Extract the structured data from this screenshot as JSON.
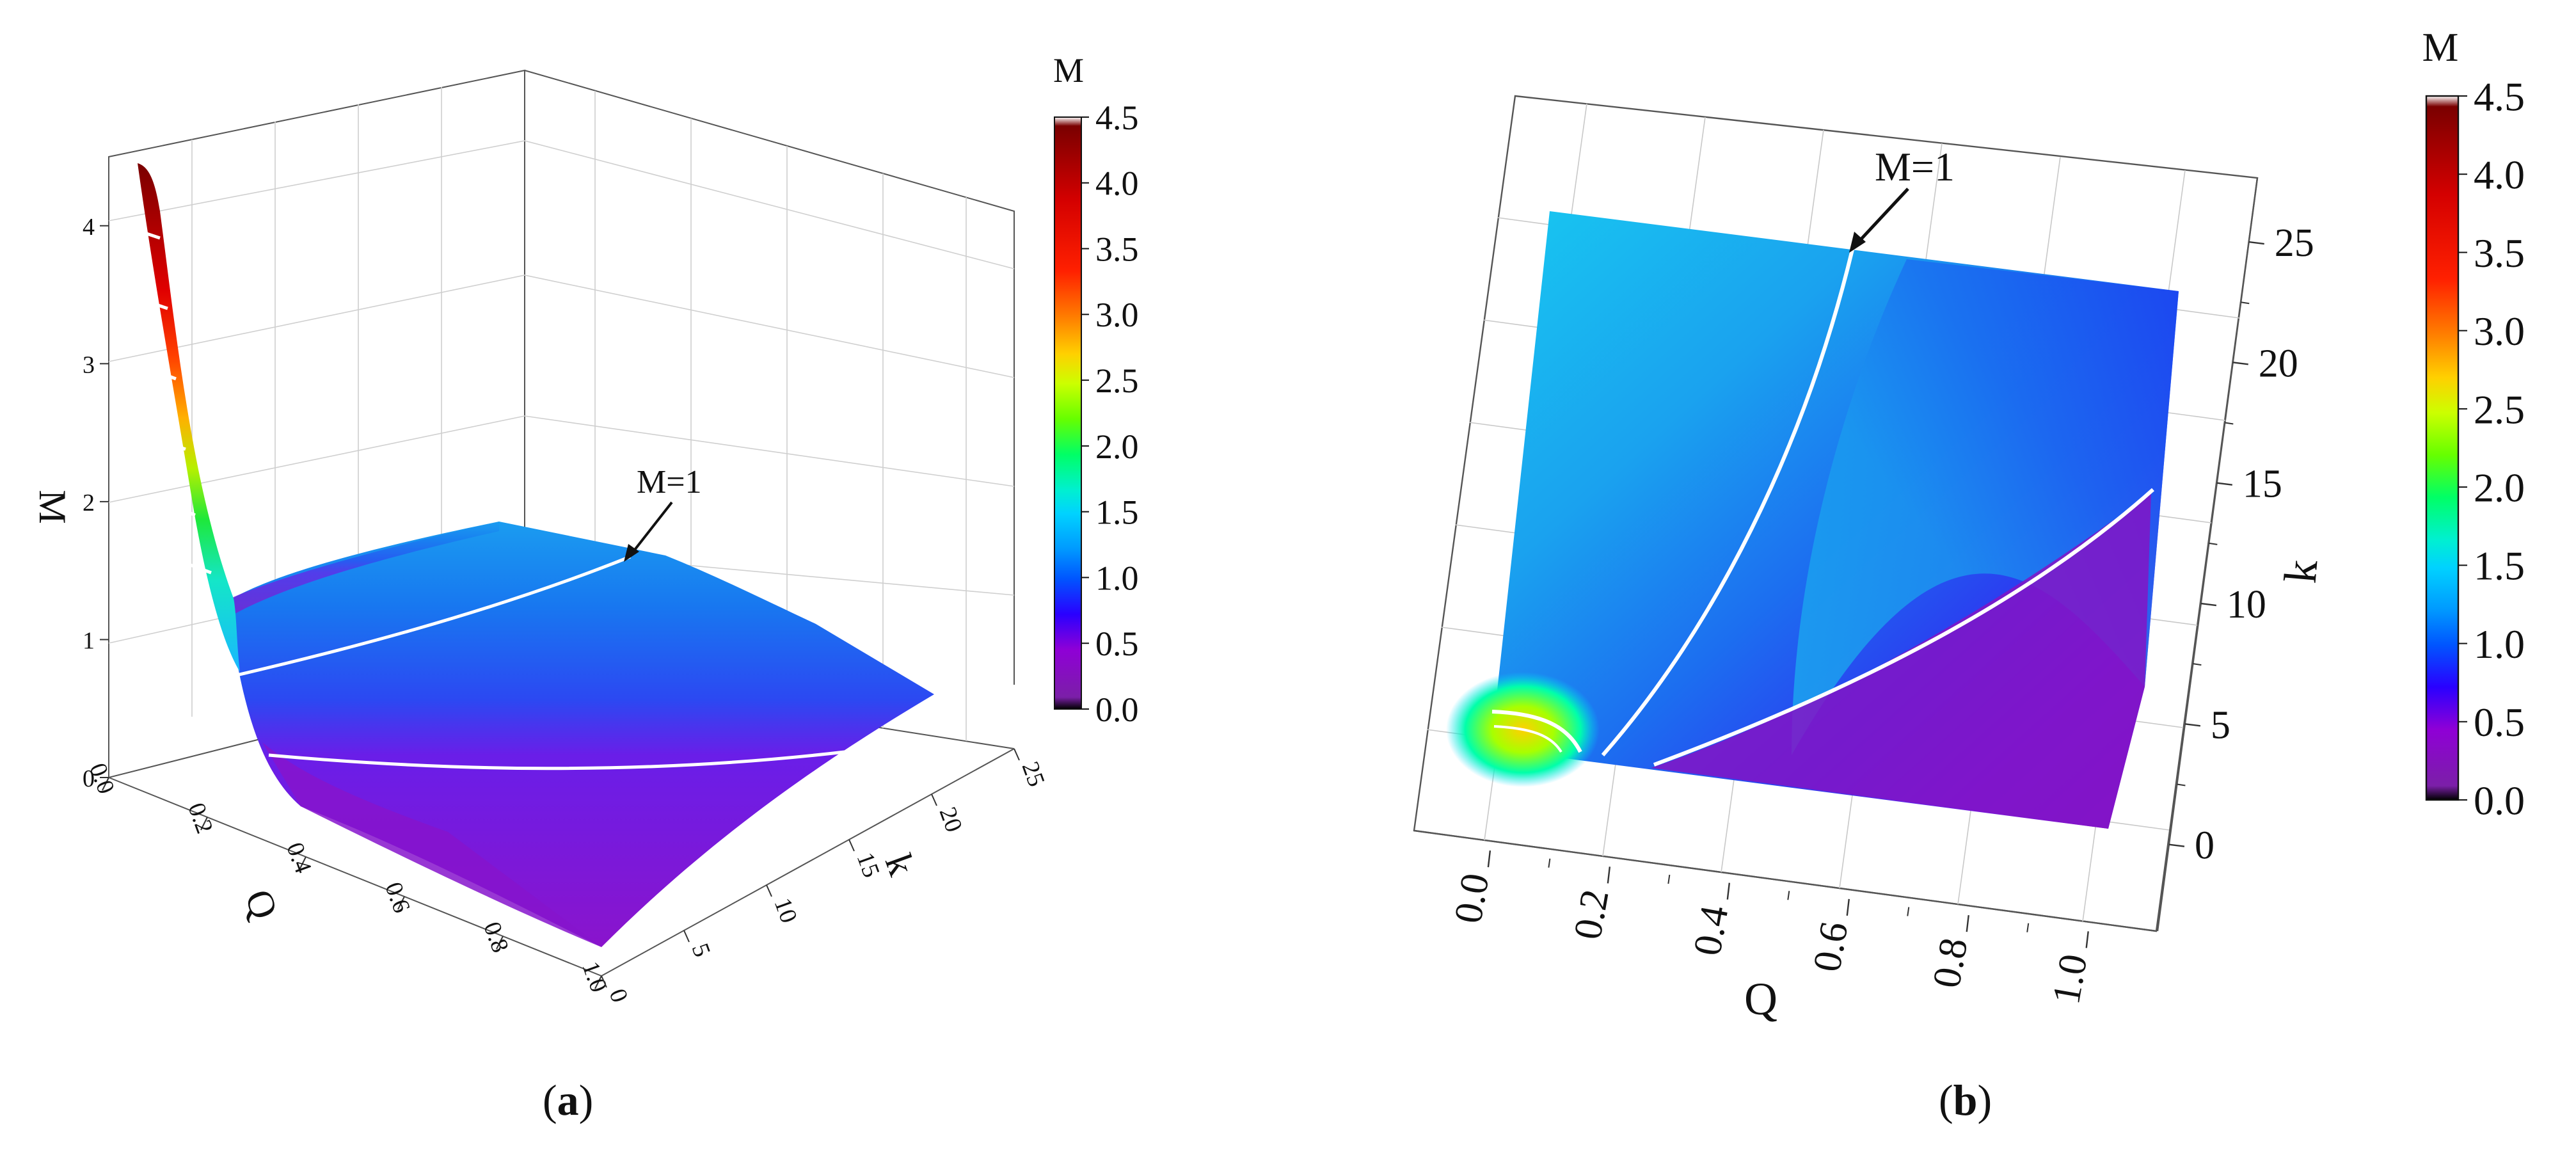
{
  "chart_data": [
    {
      "panel": "(a)",
      "type": "surface3d",
      "xlabel": "Q",
      "ylabel": "k",
      "zlabel": "M",
      "x_ticks": [
        "0.0",
        "0.2",
        "0.4",
        "0.6",
        "0.8",
        "1.0"
      ],
      "y_ticks": [
        "0",
        "5",
        "10",
        "15",
        "20",
        "25"
      ],
      "z_ticks": [
        "0",
        "1",
        "2",
        "3",
        "4"
      ],
      "xlim": [
        0,
        1
      ],
      "ylim": [
        0,
        25
      ],
      "zlim": [
        0,
        4.5
      ],
      "annotation": "M=1",
      "colorbar": {
        "title": "M",
        "ticks": [
          "0.0",
          "0.5",
          "1.0",
          "1.5",
          "2.0",
          "2.5",
          "3.0",
          "3.5",
          "4.0",
          "4.5"
        ],
        "range": [
          0,
          4.5
        ]
      }
    },
    {
      "panel": "(b)",
      "type": "heatmap",
      "xlabel": "Q",
      "ylabel": "k",
      "x_ticks": [
        "0.0",
        "0.2",
        "0.4",
        "0.6",
        "0.8",
        "1.0"
      ],
      "y_ticks": [
        "0",
        "5",
        "10",
        "15",
        "20",
        "25"
      ],
      "xlim": [
        0,
        1
      ],
      "ylim": [
        0,
        25
      ],
      "annotation": "M=1",
      "colorbar": {
        "title": "M",
        "ticks": [
          "0.0",
          "0.5",
          "1.0",
          "1.5",
          "2.0",
          "2.5",
          "3.0",
          "3.5",
          "4.0",
          "4.5"
        ],
        "range": [
          0,
          4.5
        ]
      }
    }
  ],
  "colormap": [
    "#000000",
    "#7b1fa8",
    "#8f00d6",
    "#2a00ff",
    "#0055ff",
    "#0099ff",
    "#00d2ff",
    "#00f0d0",
    "#00ff66",
    "#66ff00",
    "#ccff00",
    "#ffd000",
    "#ff8000",
    "#ff2000",
    "#d40000",
    "#7a0000"
  ],
  "captions": {
    "a_letter": "a",
    "b_letter": "b"
  }
}
